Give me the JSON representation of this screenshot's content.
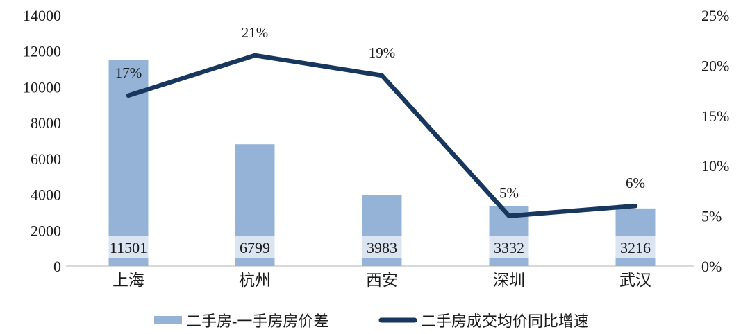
{
  "chart": {
    "colors": {
      "bar": "#95b3d7",
      "bar_label_box": "#dbe5f1",
      "line": "#17375e",
      "axis_line": "#d9d9d9",
      "text": "#1a1a1a",
      "background": "#ffffff"
    },
    "left_axis": {
      "ticks": [
        "14000",
        "12000",
        "10000",
        "8000",
        "6000",
        "4000",
        "2000",
        "0"
      ],
      "tick_values": [
        14000,
        12000,
        10000,
        8000,
        6000,
        4000,
        2000,
        0
      ]
    },
    "right_axis": {
      "ticks": [
        "25%",
        "20%",
        "15%",
        "10%",
        "5%",
        "0%"
      ],
      "tick_values": [
        25,
        20,
        15,
        10,
        5,
        0
      ]
    }
  },
  "chart_data": {
    "type": "combo",
    "title": "",
    "categories": [
      "上海",
      "杭州",
      "西安",
      "深圳",
      "武汉"
    ],
    "series": [
      {
        "name": "二手房-一手房房价差",
        "type": "bar",
        "axis": "left",
        "values": [
          11501,
          6799,
          3983,
          3332,
          3216
        ],
        "labels": [
          "11501",
          "6799",
          "3983",
          "3332",
          "3216"
        ]
      },
      {
        "name": "二手房成交均价同比增速",
        "type": "line",
        "axis": "right",
        "values": [
          17,
          21,
          19,
          5,
          6
        ],
        "labels": [
          "17%",
          "21%",
          "19%",
          "5%",
          "6%"
        ]
      }
    ],
    "left_ylim": [
      0,
      14000
    ],
    "right_ylim": [
      0,
      25
    ],
    "grid": false,
    "legend_position": "bottom"
  }
}
